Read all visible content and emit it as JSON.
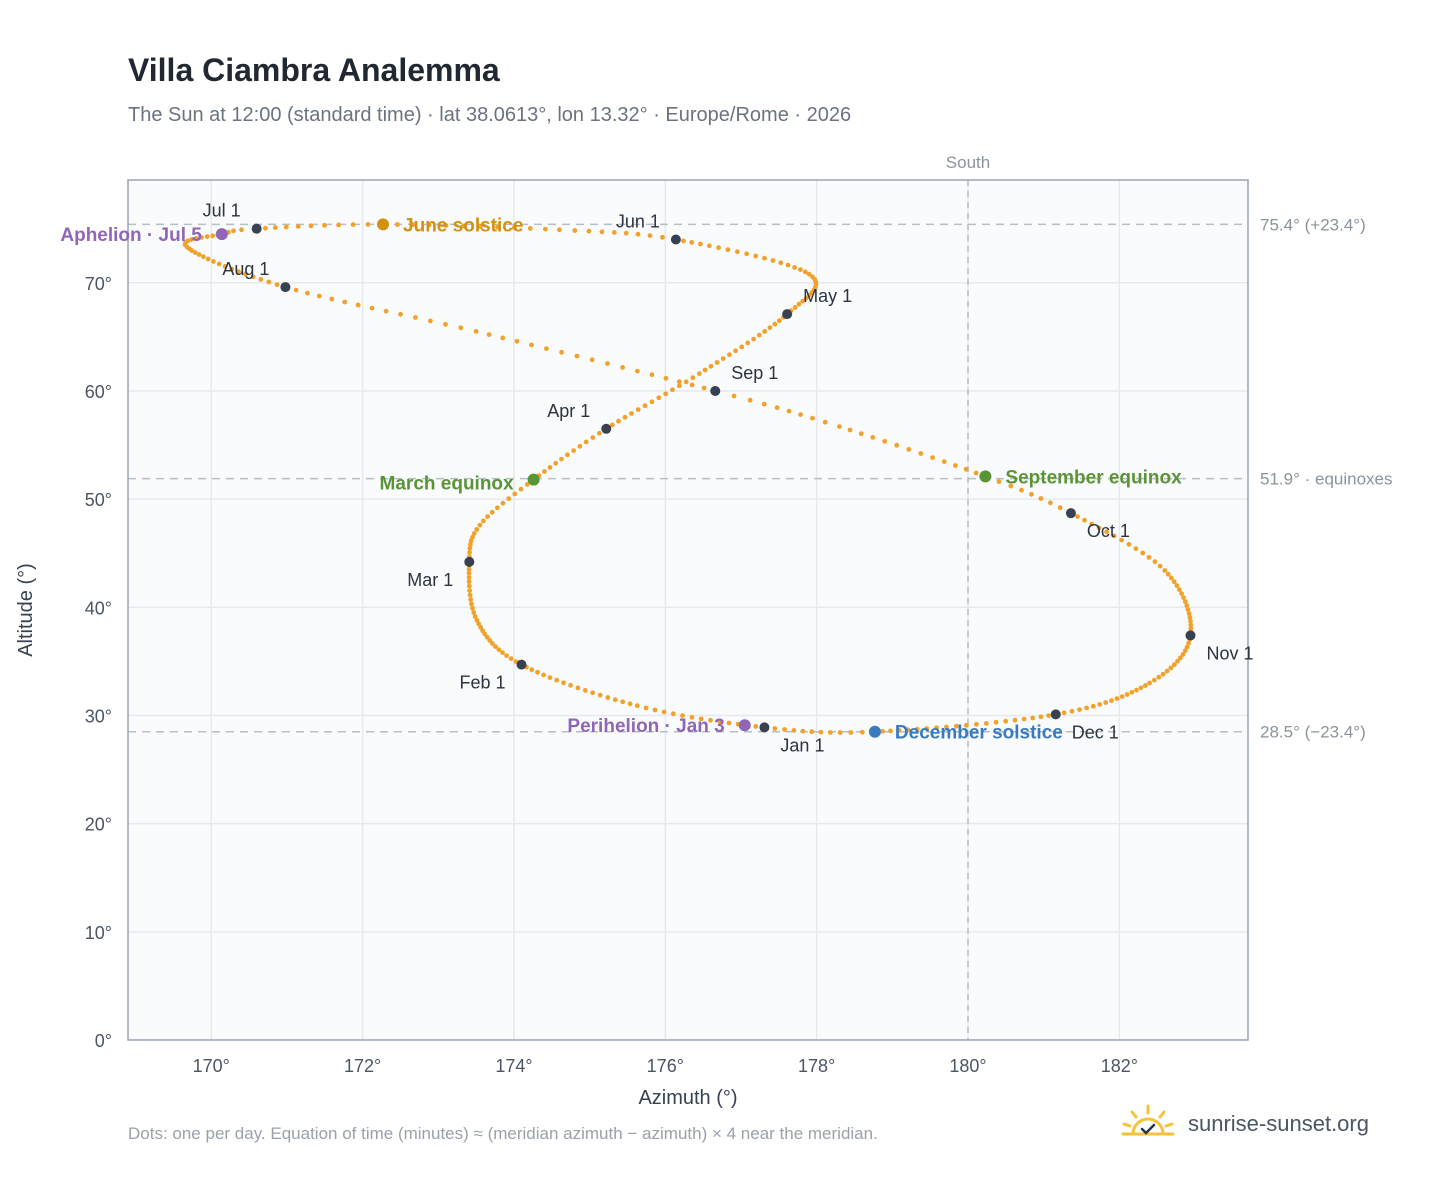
{
  "page": {
    "title": "Villa Ciambra Analemma",
    "subtitle": "The Sun at 12:00 (standard time) · lat 38.0613°, lon 13.32° · Europe/Rome · 2026",
    "footnote": "Dots: one per day. Equation of time (minutes) ≈ (meridian azimuth − azimuth) × 4 near the meridian.",
    "brand": "sunrise-sunset.org",
    "brand_icon": "sun-logo-icon"
  },
  "chart_data": {
    "type": "scatter",
    "title": "Villa Ciambra Analemma",
    "subtitle": "The Sun at 12:00 (standard time) · lat 38.0613°, lon 13.32° · Europe/Rome · 2026",
    "xlabel": "Azimuth (°)",
    "ylabel": "Altitude (°)",
    "xlim": [
      168.9,
      183.7
    ],
    "ylim": [
      0,
      79.5
    ],
    "grid": true,
    "x_ticks": [
      {
        "value": 170,
        "label": "170°"
      },
      {
        "value": 172,
        "label": "172°"
      },
      {
        "value": 174,
        "label": "174°"
      },
      {
        "value": 176,
        "label": "176°"
      },
      {
        "value": 178,
        "label": "178°"
      },
      {
        "value": 180,
        "label": "180°"
      },
      {
        "value": 182,
        "label": "182°"
      }
    ],
    "y_ticks": [
      {
        "value": 0,
        "label": "0°"
      },
      {
        "value": 10,
        "label": "10°"
      },
      {
        "value": 20,
        "label": "20°"
      },
      {
        "value": 30,
        "label": "30°"
      },
      {
        "value": 40,
        "label": "40°"
      },
      {
        "value": 50,
        "label": "50°"
      },
      {
        "value": 60,
        "label": "60°"
      },
      {
        "value": 70,
        "label": "70°"
      }
    ],
    "colors": {
      "curve": "#f2a22b",
      "month_marker": "#374151",
      "equinox": "#5b9436",
      "june_solstice": "#d4900f",
      "december_solstice": "#3a7bc0",
      "apsis": "#9166b8",
      "reference_line": "#b6bec8",
      "grid": "#e6e9ee",
      "plot_background": "#f9fbfd"
    },
    "reference_lines": [
      {
        "axis": "x",
        "value": 180,
        "label": "South"
      },
      {
        "axis": "y",
        "value": 75.4,
        "label": "75.4° (+23.4°)"
      },
      {
        "axis": "y",
        "value": 51.9,
        "label": "51.9° · equinoxes"
      },
      {
        "axis": "y",
        "value": 28.5,
        "label": "28.5° (−23.4°)"
      }
    ],
    "series": [
      {
        "points": [
          {
            "date": "Jan 1",
            "az": 177.31,
            "alt": 28.9
          },
          {
            "date": "Jan 15",
            "az": 175.63,
            "alt": 30.9
          },
          {
            "date": "Feb 1",
            "az": 174.1,
            "alt": 34.7
          },
          {
            "date": "Feb 15",
            "az": 173.51,
            "alt": 38.8
          },
          {
            "date": "Mar 1",
            "az": 173.41,
            "alt": 44.2
          },
          {
            "date": "Mar 10",
            "az": 173.55,
            "alt": 47.6
          },
          {
            "date": "Mar 20",
            "az": 174.26,
            "alt": 51.8
          },
          {
            "date": "Apr 1",
            "az": 175.22,
            "alt": 56.5
          },
          {
            "date": "Apr 15",
            "az": 176.45,
            "alt": 61.6
          },
          {
            "date": "May 1",
            "az": 177.61,
            "alt": 67.1
          },
          {
            "date": "May 15",
            "az": 177.9,
            "alt": 70.8
          },
          {
            "date": "Jun 1",
            "az": 176.14,
            "alt": 74.0
          },
          {
            "date": "Jun 10",
            "az": 174.6,
            "alt": 74.9
          },
          {
            "date": "Jun 21",
            "az": 172.27,
            "alt": 75.4
          },
          {
            "date": "Jul 1",
            "az": 170.6,
            "alt": 75.0
          },
          {
            "date": "Jul 5",
            "az": 170.14,
            "alt": 74.5
          },
          {
            "date": "Jul 15",
            "az": 169.68,
            "alt": 73.3
          },
          {
            "date": "Aug 1",
            "az": 170.98,
            "alt": 69.6
          },
          {
            "date": "Aug 15",
            "az": 173.5,
            "alt": 65.5
          },
          {
            "date": "Sep 1",
            "az": 176.66,
            "alt": 60.0
          },
          {
            "date": "Sep 10",
            "az": 178.3,
            "alt": 56.7
          },
          {
            "date": "Sep 23",
            "az": 180.23,
            "alt": 52.1
          },
          {
            "date": "Oct 1",
            "az": 181.36,
            "alt": 48.7
          },
          {
            "date": "Oct 15",
            "az": 182.6,
            "alt": 43.4
          },
          {
            "date": "Nov 1",
            "az": 182.94,
            "alt": 37.4
          },
          {
            "date": "Nov 15",
            "az": 182.4,
            "alt": 33.0
          },
          {
            "date": "Dec 1",
            "az": 181.16,
            "alt": 30.1
          },
          {
            "date": "Dec 21",
            "az": 178.77,
            "alt": 28.5
          },
          {
            "date": "Dec 31",
            "az": 177.4,
            "alt": 28.9
          }
        ]
      }
    ],
    "month_markers": [
      {
        "label": "Jan 1",
        "az": 177.31,
        "alt": 28.9
      },
      {
        "label": "Feb 1",
        "az": 174.1,
        "alt": 34.7
      },
      {
        "label": "Mar 1",
        "az": 173.41,
        "alt": 44.2
      },
      {
        "label": "Apr 1",
        "az": 175.22,
        "alt": 56.5
      },
      {
        "label": "May 1",
        "az": 177.61,
        "alt": 67.1
      },
      {
        "label": "Jun 1",
        "az": 176.14,
        "alt": 74.0
      },
      {
        "label": "Jul 1",
        "az": 170.6,
        "alt": 75.0
      },
      {
        "label": "Aug 1",
        "az": 170.98,
        "alt": 69.6
      },
      {
        "label": "Sep 1",
        "az": 176.66,
        "alt": 60.0
      },
      {
        "label": "Oct 1",
        "az": 181.36,
        "alt": 48.7
      },
      {
        "label": "Nov 1",
        "az": 182.94,
        "alt": 37.4
      },
      {
        "label": "Dec 1",
        "az": 181.16,
        "alt": 30.1
      }
    ],
    "events": [
      {
        "label": "June solstice",
        "az": 172.27,
        "alt": 75.4,
        "kind": "june_solstice"
      },
      {
        "label": "December solstice",
        "az": 178.77,
        "alt": 28.5,
        "kind": "december_solstice"
      },
      {
        "label": "March equinox",
        "az": 174.26,
        "alt": 51.8,
        "kind": "equinox"
      },
      {
        "label": "September equinox",
        "az": 180.23,
        "alt": 52.1,
        "kind": "equinox"
      },
      {
        "label": "Aphelion · Jul 5",
        "az": 170.14,
        "alt": 74.5,
        "kind": "apsis"
      },
      {
        "label": "Perihelion · Jan 3",
        "az": 177.05,
        "alt": 29.1,
        "kind": "apsis"
      }
    ]
  }
}
